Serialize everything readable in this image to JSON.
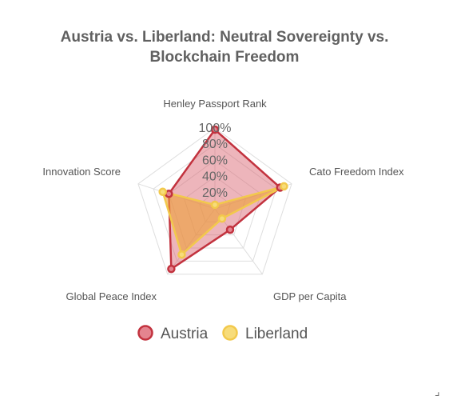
{
  "chart_data": {
    "type": "radar",
    "title_lines": [
      "Austria vs. Liberland: Neutral Sovereignty vs.",
      "Blockchain Freedom"
    ],
    "axes": [
      "Henley Passport Rank",
      "Cato Freedom Index",
      "GDP per Capita",
      "Global Peace Index",
      "Innovation Score"
    ],
    "ticks": [
      "20%",
      "40%",
      "60%",
      "80%",
      "100%"
    ],
    "tick_values": [
      20,
      40,
      60,
      80,
      100
    ],
    "range": [
      0,
      100
    ],
    "series": [
      {
        "name": "Austria",
        "values": [
          98,
          85,
          32,
          92,
          60
        ],
        "stroke": "#c2323e",
        "fill": "rgba(215,90,105,0.45)",
        "point_fill": "#e4848f"
      },
      {
        "name": "Liberland",
        "values": [
          5,
          90,
          15,
          70,
          68
        ],
        "stroke": "#f2c94c",
        "fill": "rgba(238,160,60,0.62)",
        "point_fill": "#f7dc7a"
      }
    ],
    "legend_position": "bottom",
    "grid": true
  },
  "corner_mark": "⌟"
}
